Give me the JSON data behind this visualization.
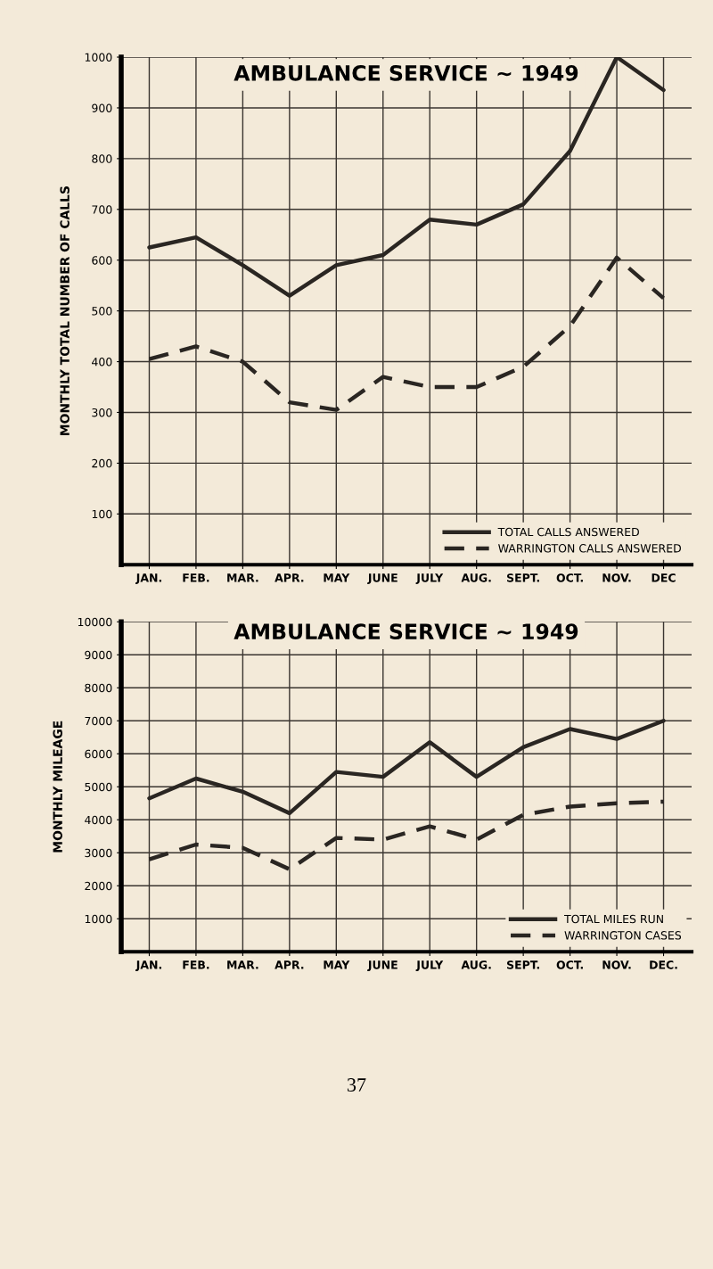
{
  "chart_data": [
    {
      "type": "line",
      "title": "AMBULANCE SERVICE ~ 1949",
      "ylabel": "MONTHLY TOTAL NUMBER OF CALLS",
      "categories": [
        "JAN.",
        "FEB.",
        "MAR.",
        "APR.",
        "MAY",
        "JUNE",
        "JULY",
        "AUG.",
        "SEPT.",
        "OCT.",
        "NOV.",
        "DEC"
      ],
      "series": [
        {
          "name": "TOTAL CALLS ANSWERED",
          "color": "#2a2622",
          "line_style": "solid",
          "values": [
            625,
            645,
            590,
            530,
            590,
            610,
            680,
            670,
            710,
            815,
            1000,
            935
          ]
        },
        {
          "name": "WARRINGTON CALLS ANSWERED",
          "color": "#2a2622",
          "line_style": "dashed",
          "values": [
            405,
            430,
            400,
            320,
            305,
            370,
            350,
            350,
            390,
            470,
            605,
            525
          ]
        }
      ],
      "ylim": [
        0,
        1000
      ],
      "yticks": [
        100,
        200,
        300,
        400,
        500,
        600,
        700,
        800,
        900,
        1000
      ],
      "grid": true,
      "legend": "bottom right"
    },
    {
      "type": "line",
      "title": "AMBULANCE SERVICE ~ 1949",
      "ylabel": "MONTHLY MILEAGE",
      "categories": [
        "JAN.",
        "FEB.",
        "MAR.",
        "APR.",
        "MAY",
        "JUNE",
        "JULY",
        "AUG.",
        "SEPT.",
        "OCT.",
        "NOV.",
        "DEC."
      ],
      "series": [
        {
          "name": "TOTAL MILES RUN",
          "color": "#2a2622",
          "line_style": "solid",
          "values": [
            4650,
            5250,
            4850,
            4200,
            5450,
            5300,
            6350,
            5300,
            6200,
            6750,
            6450,
            7000
          ]
        },
        {
          "name": "WARRINGTON CASES",
          "color": "#2a2622",
          "line_style": "dashed",
          "values": [
            2800,
            3250,
            3150,
            2500,
            3450,
            3400,
            3800,
            3400,
            4150,
            4400,
            4500,
            4550
          ]
        }
      ],
      "ylim": [
        0,
        10000
      ],
      "yticks": [
        1000,
        2000,
        3000,
        4000,
        5000,
        6000,
        7000,
        8000,
        9000,
        10000
      ],
      "grid": true,
      "legend": "bottom right",
      "annotations": [
        "37"
      ]
    }
  ]
}
